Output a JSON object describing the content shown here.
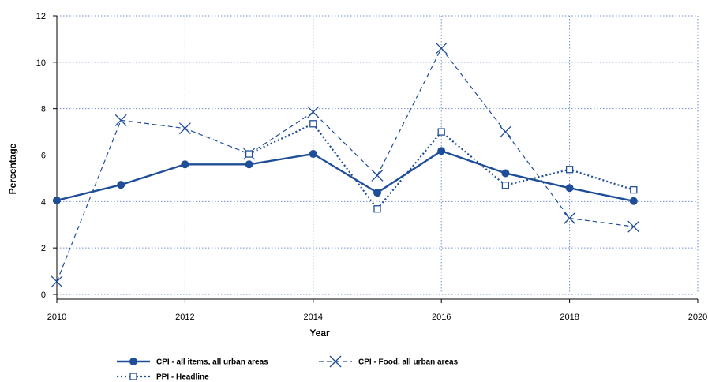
{
  "chart_data": {
    "type": "line",
    "title": "",
    "xlabel": "Year",
    "ylabel": "Percentage",
    "xlim": [
      2010,
      2020
    ],
    "ylim": [
      0,
      12
    ],
    "xticks": [
      "2010",
      "2012",
      "2014",
      "2016",
      "2018",
      "2020"
    ],
    "yticks": [
      "0",
      "2",
      "4",
      "6",
      "8",
      "10",
      "12"
    ],
    "grid": true,
    "legend_position": "bottom",
    "series": [
      {
        "name": "CPI - all items, all urban areas",
        "style": "solid",
        "marker": "filled-circle",
        "color": "#1f4e99",
        "x": [
          2010,
          2011,
          2012,
          2013,
          2014,
          2015,
          2016,
          2017,
          2018,
          2019
        ],
        "y": [
          4.05,
          4.72,
          5.6,
          5.6,
          6.05,
          4.38,
          6.18,
          5.22,
          4.58,
          4.02
        ]
      },
      {
        "name": "CPI - Food, all urban areas",
        "style": "dashed",
        "marker": "x",
        "color": "#1f4e99",
        "x": [
          2010,
          2011,
          2012,
          2013,
          2014,
          2015,
          2016,
          2017,
          2018,
          2019
        ],
        "y": [
          0.55,
          7.5,
          7.15,
          6.05,
          7.85,
          5.12,
          10.6,
          7.0,
          3.28,
          2.92
        ]
      },
      {
        "name": "PPI - Headline",
        "style": "dotted",
        "marker": "open-square",
        "color": "#1f4e99",
        "x": [
          2013,
          2014,
          2015,
          2016,
          2017,
          2018,
          2019
        ],
        "y": [
          6.05,
          7.35,
          3.68,
          7.0,
          4.7,
          5.38,
          4.5
        ]
      }
    ]
  }
}
